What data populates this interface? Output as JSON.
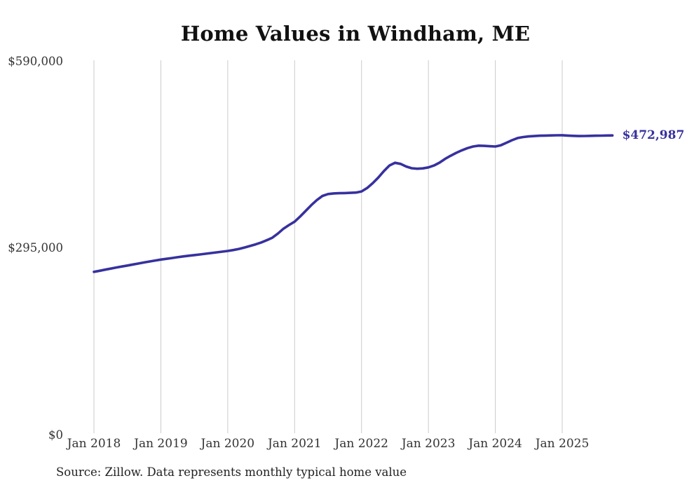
{
  "chart_data": {
    "type": "line",
    "title": "Home Values in Windham, ME",
    "end_label": "$472,987",
    "source_note": "Source: Zillow. Data represents monthly typical home value",
    "legend": "none",
    "grid": "vertical-only",
    "x_axis": {
      "start_month": "2018-01",
      "end_month": "2025-10",
      "frequency": "monthly",
      "tick_labels": [
        "Jan 2018",
        "Jan 2019",
        "Jan 2020",
        "Jan 2021",
        "Jan 2022",
        "Jan 2023",
        "Jan 2024",
        "Jan 2025"
      ]
    },
    "y_axis": {
      "range": [
        0,
        590000
      ],
      "ticks": [
        {
          "label": "$0",
          "value": 0
        },
        {
          "label": "$295,000",
          "value": 295000
        },
        {
          "label": "$590,000",
          "value": 590000
        }
      ]
    },
    "series": [
      {
        "name": "Monthly typical home value",
        "color": "#37319e",
        "values": [
          257600,
          259300,
          261000,
          262700,
          264400,
          266000,
          267600,
          269200,
          270800,
          272400,
          274000,
          275500,
          277000,
          278200,
          279400,
          280700,
          281900,
          283000,
          284000,
          285000,
          286100,
          287300,
          288400,
          289500,
          290600,
          292000,
          293800,
          296000,
          298400,
          301000,
          304000,
          307500,
          311500,
          318000,
          325800,
          331500,
          336800,
          345000,
          354000,
          363000,
          371000,
          377500,
          380500,
          381500,
          381800,
          382000,
          382300,
          382800,
          384500,
          390000,
          397500,
          406500,
          416500,
          425500,
          429800,
          428000,
          424000,
          421200,
          420400,
          421000,
          422500,
          425500,
          430000,
          436000,
          441000,
          445500,
          449500,
          453000,
          455500,
          456800,
          456500,
          456000,
          455500,
          457500,
          461500,
          465500,
          468900,
          470500,
          471500,
          472000,
          472500,
          472800,
          473000,
          473200,
          473300,
          472800,
          472300,
          472000,
          472100,
          472300,
          472500,
          472700,
          472900,
          472987
        ]
      }
    ],
    "styles": {
      "line_color": "#37319e",
      "end_label_color": "#37319e",
      "grid_color": "#cbcbcb",
      "axis_label_color": "#333333",
      "title_color": "#111111",
      "source_color": "#222222",
      "background": "#ffffff"
    }
  }
}
